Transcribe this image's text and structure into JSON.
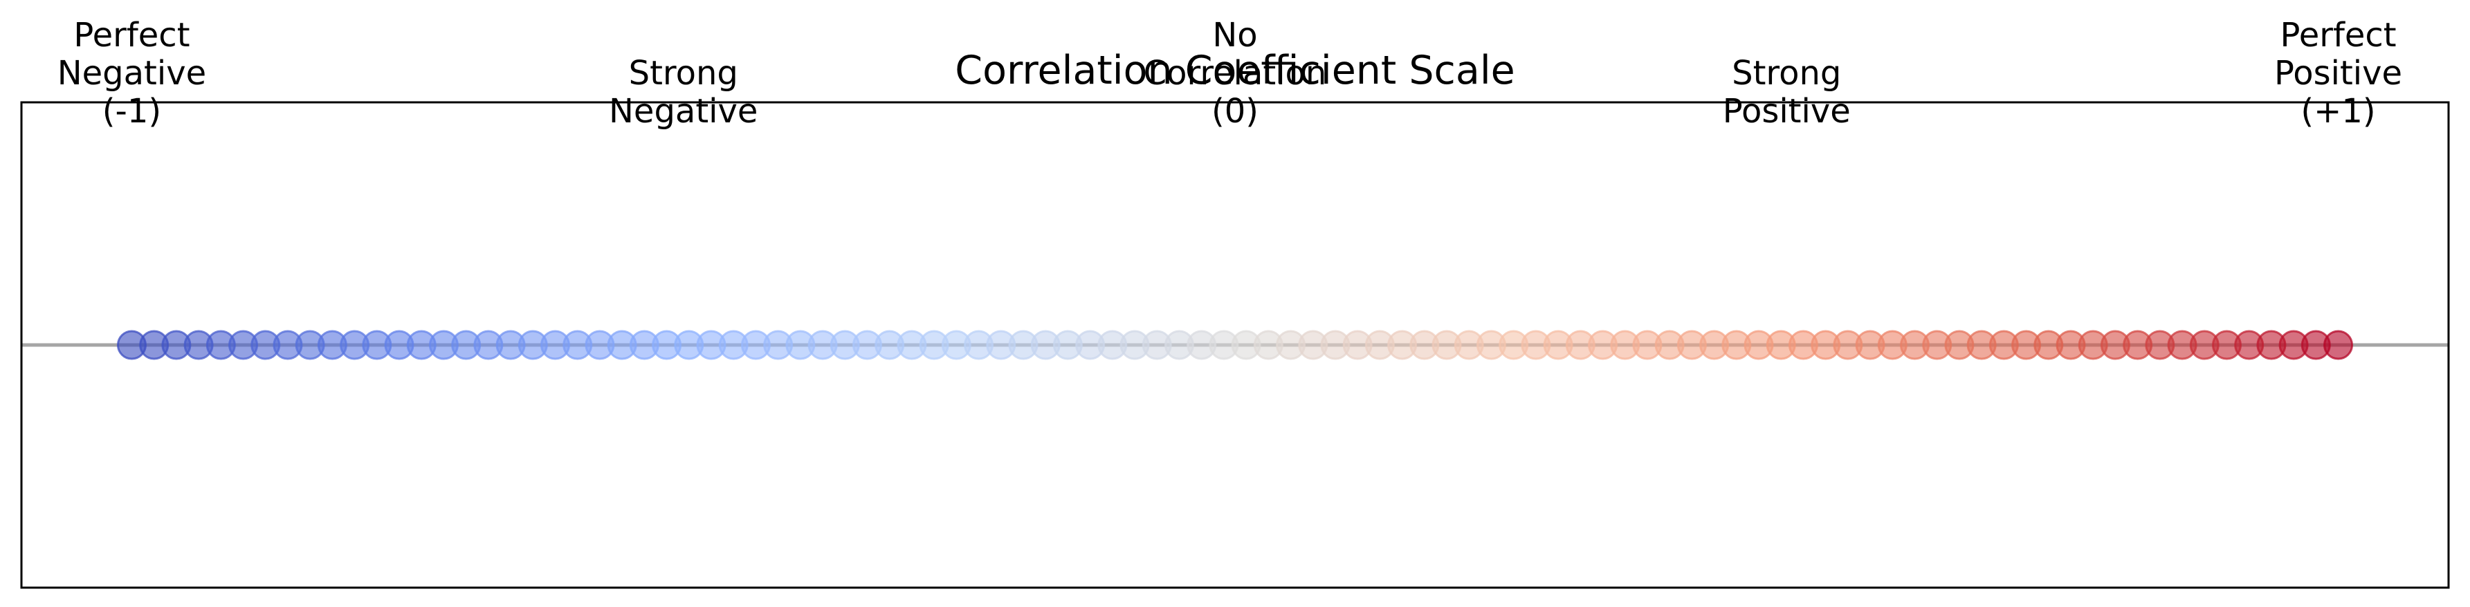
{
  "chart_data": {
    "type": "scatter",
    "title": "Correlation Coefficient Scale",
    "xlabel": "",
    "ylabel": "",
    "xlim": [
      -1.1,
      1.1
    ],
    "ylim": [
      -1,
      1
    ],
    "grid": false,
    "n_points": 100,
    "x_start": -1,
    "x_end": 1,
    "y_value": 0,
    "colormap": "coolwarm",
    "point_alpha": 0.6,
    "baseline_y": 0,
    "baseline_color": "#808080",
    "annotations": [
      {
        "x": -1,
        "lines": [
          "Perfect",
          "Negative",
          "(-1)"
        ]
      },
      {
        "x": -0.5,
        "lines": [
          "Strong",
          "Negative"
        ]
      },
      {
        "x": 0,
        "lines": [
          "No",
          "Correlation",
          "(0)"
        ]
      },
      {
        "x": 0.5,
        "lines": [
          "Strong",
          "Positive"
        ]
      },
      {
        "x": 1,
        "lines": [
          "Perfect",
          "Positive",
          "(+1)"
        ]
      }
    ]
  }
}
